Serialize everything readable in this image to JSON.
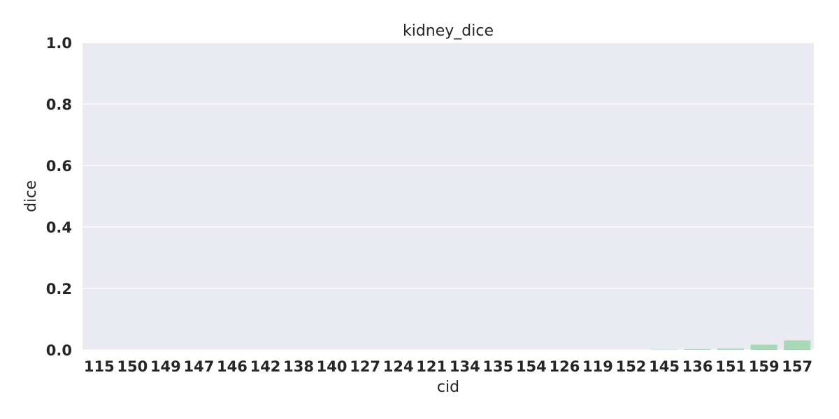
{
  "colors": {
    "plot_background": "#eaeaf2",
    "grid": "#ffffff",
    "bar": "#a8d8b8",
    "text": "#262626"
  },
  "chart_data": {
    "type": "bar",
    "title": "kidney_dice",
    "xlabel": "cid",
    "ylabel": "dice",
    "ylim": [
      0,
      1.0
    ],
    "yticks": [
      "0.0",
      "0.2",
      "0.4",
      "0.6",
      "0.8",
      "1.0"
    ],
    "grid": true,
    "categories": [
      "115",
      "150",
      "149",
      "147",
      "146",
      "142",
      "138",
      "140",
      "127",
      "124",
      "121",
      "134",
      "135",
      "154",
      "126",
      "119",
      "152",
      "145",
      "136",
      "151",
      "159",
      "157"
    ],
    "values": [
      0.0,
      0.0,
      0.0,
      0.0,
      0.0,
      0.0,
      0.0,
      0.0,
      0.0,
      0.0,
      0.0,
      0.0,
      0.0,
      0.0,
      0.0,
      0.0,
      0.0,
      0.001,
      0.002,
      0.004,
      0.017,
      0.031
    ]
  }
}
